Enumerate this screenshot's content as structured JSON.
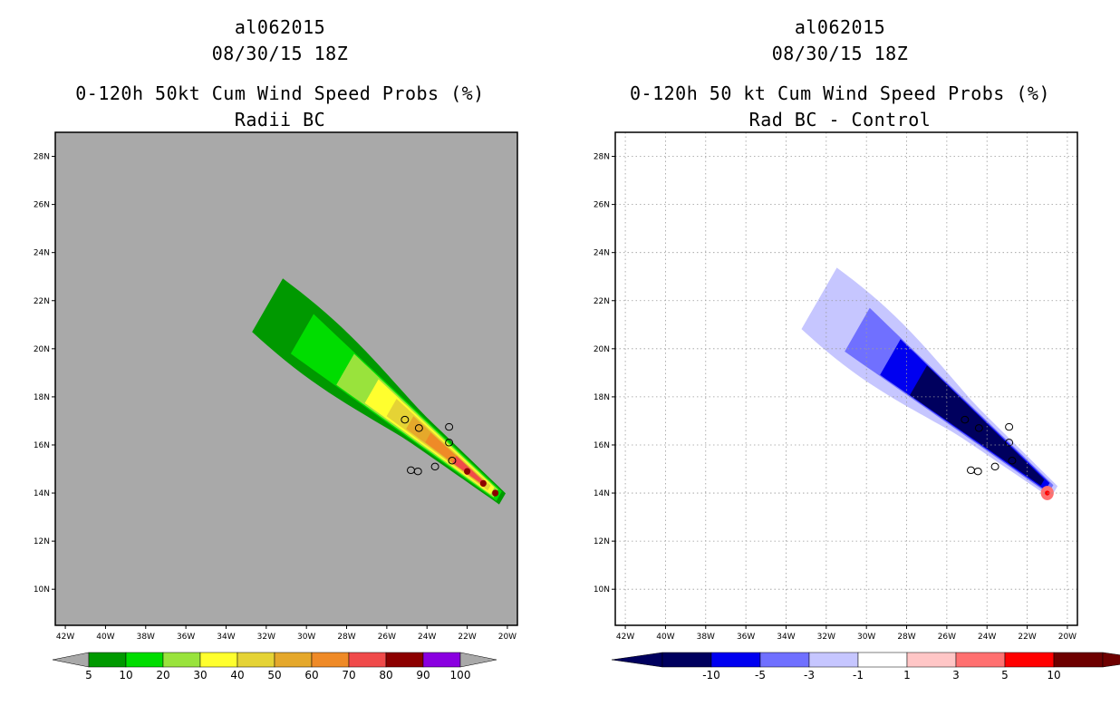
{
  "left_panel": {
    "title_line1": "al062015",
    "title_line2": "08/30/15 18Z",
    "title_line3": "0-120h 50kt Cum Wind Speed Probs (%)",
    "title_line4": "Radii BC"
  },
  "right_panel": {
    "title_line1": "al062015",
    "title_line2": "08/30/15 18Z",
    "title_line3": "0-120h 50 kt Cum Wind Speed Probs (%)",
    "title_line4": "Rad BC - Control"
  },
  "map": {
    "lon_ticks": [
      "42W",
      "40W",
      "38W",
      "36W",
      "34W",
      "32W",
      "30W",
      "28W",
      "26W",
      "24W",
      "22W",
      "20W"
    ],
    "lat_ticks": [
      "28N",
      "26N",
      "24N",
      "22N",
      "20N",
      "18N",
      "16N",
      "14N",
      "12N",
      "10N"
    ]
  },
  "colors": {
    "land_gray": "#a9a9a9",
    "prob_scale": [
      "#009900",
      "#00dd00",
      "#99e33c",
      "#ffff2e",
      "#e5d335",
      "#e5a82b",
      "#ef8a27",
      "#f04a4a",
      "#8c0000",
      "#8a00e0"
    ],
    "diff_scale": [
      "#00005e",
      "#0000f0",
      "#7070ff",
      "#c6c6ff",
      "#ffffff",
      "#ffc6c6",
      "#ff7070",
      "#ff0000",
      "#6e0000"
    ]
  },
  "chart_data": [
    {
      "type": "heatmap",
      "title": "0-120h 50kt Cum Wind Speed Probs (%)",
      "subtitle": "Radii BC",
      "storm": "al062015",
      "time": "08/30/15 18Z",
      "xlim": [
        -42.5,
        -19.5
      ],
      "ylim": [
        8.5,
        29
      ],
      "x_unit": "degrees longitude",
      "y_unit": "degrees latitude",
      "colorbar_labels": [
        "5",
        "10",
        "20",
        "30",
        "40",
        "50",
        "60",
        "70",
        "80",
        "90",
        "100"
      ],
      "contour_levels": [
        5,
        10,
        20,
        30,
        40,
        50,
        60,
        70,
        80,
        90,
        100
      ],
      "peak_location": {
        "lon": -20.6,
        "lat": 14.0
      }
    },
    {
      "type": "heatmap",
      "title": "0-120h 50 kt Cum Wind Speed Probs (%)",
      "subtitle": "Rad BC - Control",
      "storm": "al062015",
      "time": "08/30/15 18Z",
      "xlim": [
        -42.5,
        -19.5
      ],
      "ylim": [
        8.5,
        29
      ],
      "x_unit": "degrees longitude",
      "y_unit": "degrees latitude",
      "colorbar_labels": [
        "-10",
        "-5",
        "-3",
        "-1",
        "1",
        "3",
        "5",
        "10"
      ],
      "contour_levels": [
        -10,
        -5,
        -3,
        -1,
        1,
        3,
        5,
        10
      ],
      "peak_positive_location": {
        "lon": -21.0,
        "lat": 14.0
      }
    }
  ]
}
